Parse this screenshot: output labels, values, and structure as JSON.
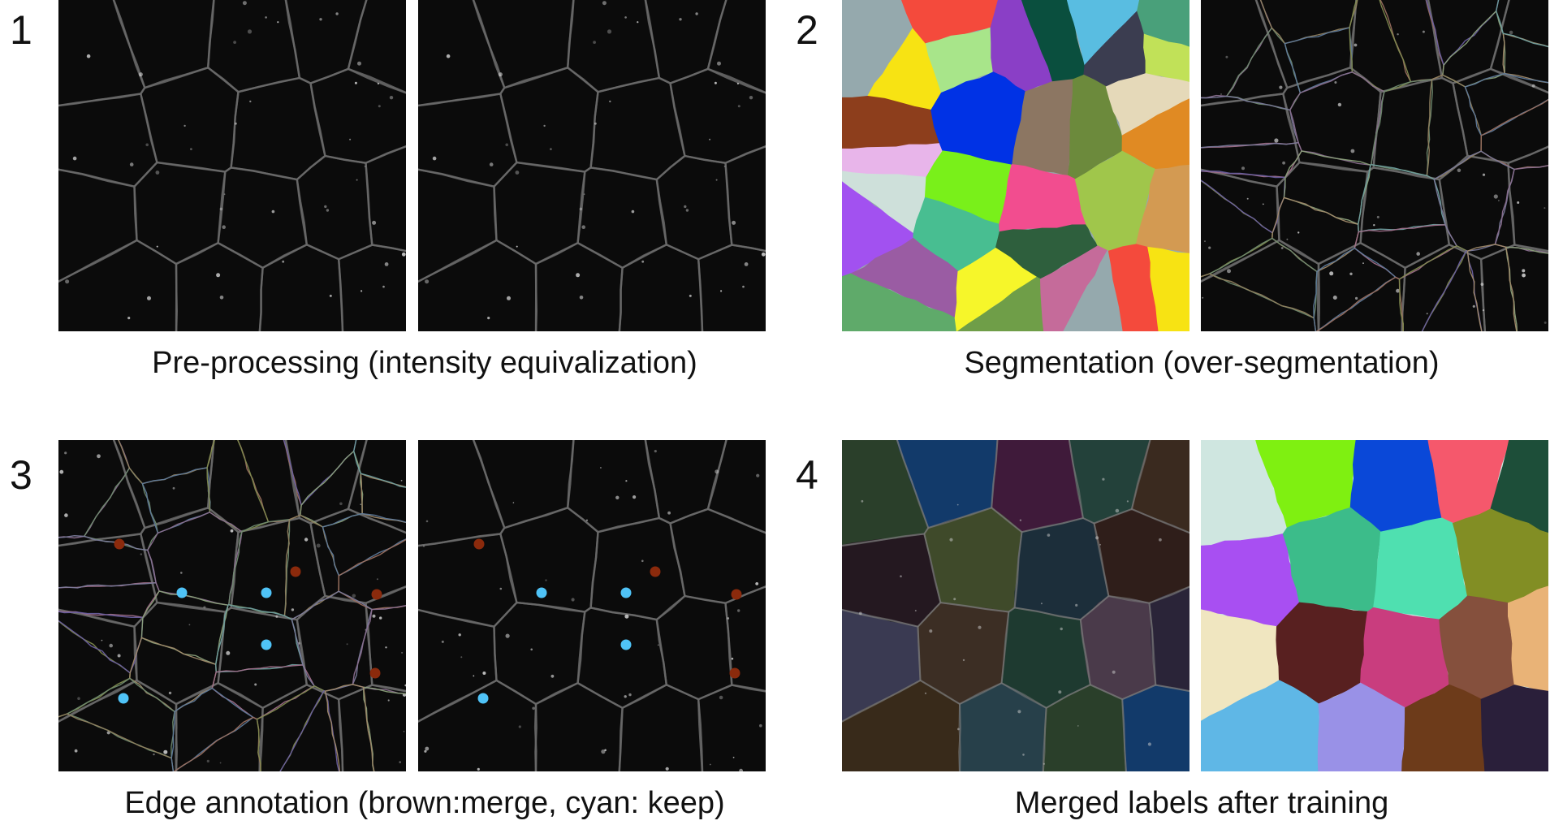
{
  "figure": {
    "steps": [
      {
        "number": "1",
        "caption": "Pre-processing (intensity equivalization)",
        "panels": [
          "raw-micrograph",
          "equalized-micrograph"
        ]
      },
      {
        "number": "2",
        "caption": "Segmentation (over-segmentation)",
        "panels": [
          "oversegmentation-labels",
          "oversegmentation-contours"
        ]
      },
      {
        "number": "3",
        "caption": "Edge annotation (brown:merge, cyan: keep)",
        "panels": [
          "annotated-contours",
          "annotated-micrograph"
        ]
      },
      {
        "number": "4",
        "caption": "Merged labels after training",
        "panels": [
          "merged-overlay",
          "merged-labels"
        ]
      }
    ],
    "annotation_colors": {
      "merge": "#8b2a0c",
      "keep": "#4fc3f7"
    }
  }
}
